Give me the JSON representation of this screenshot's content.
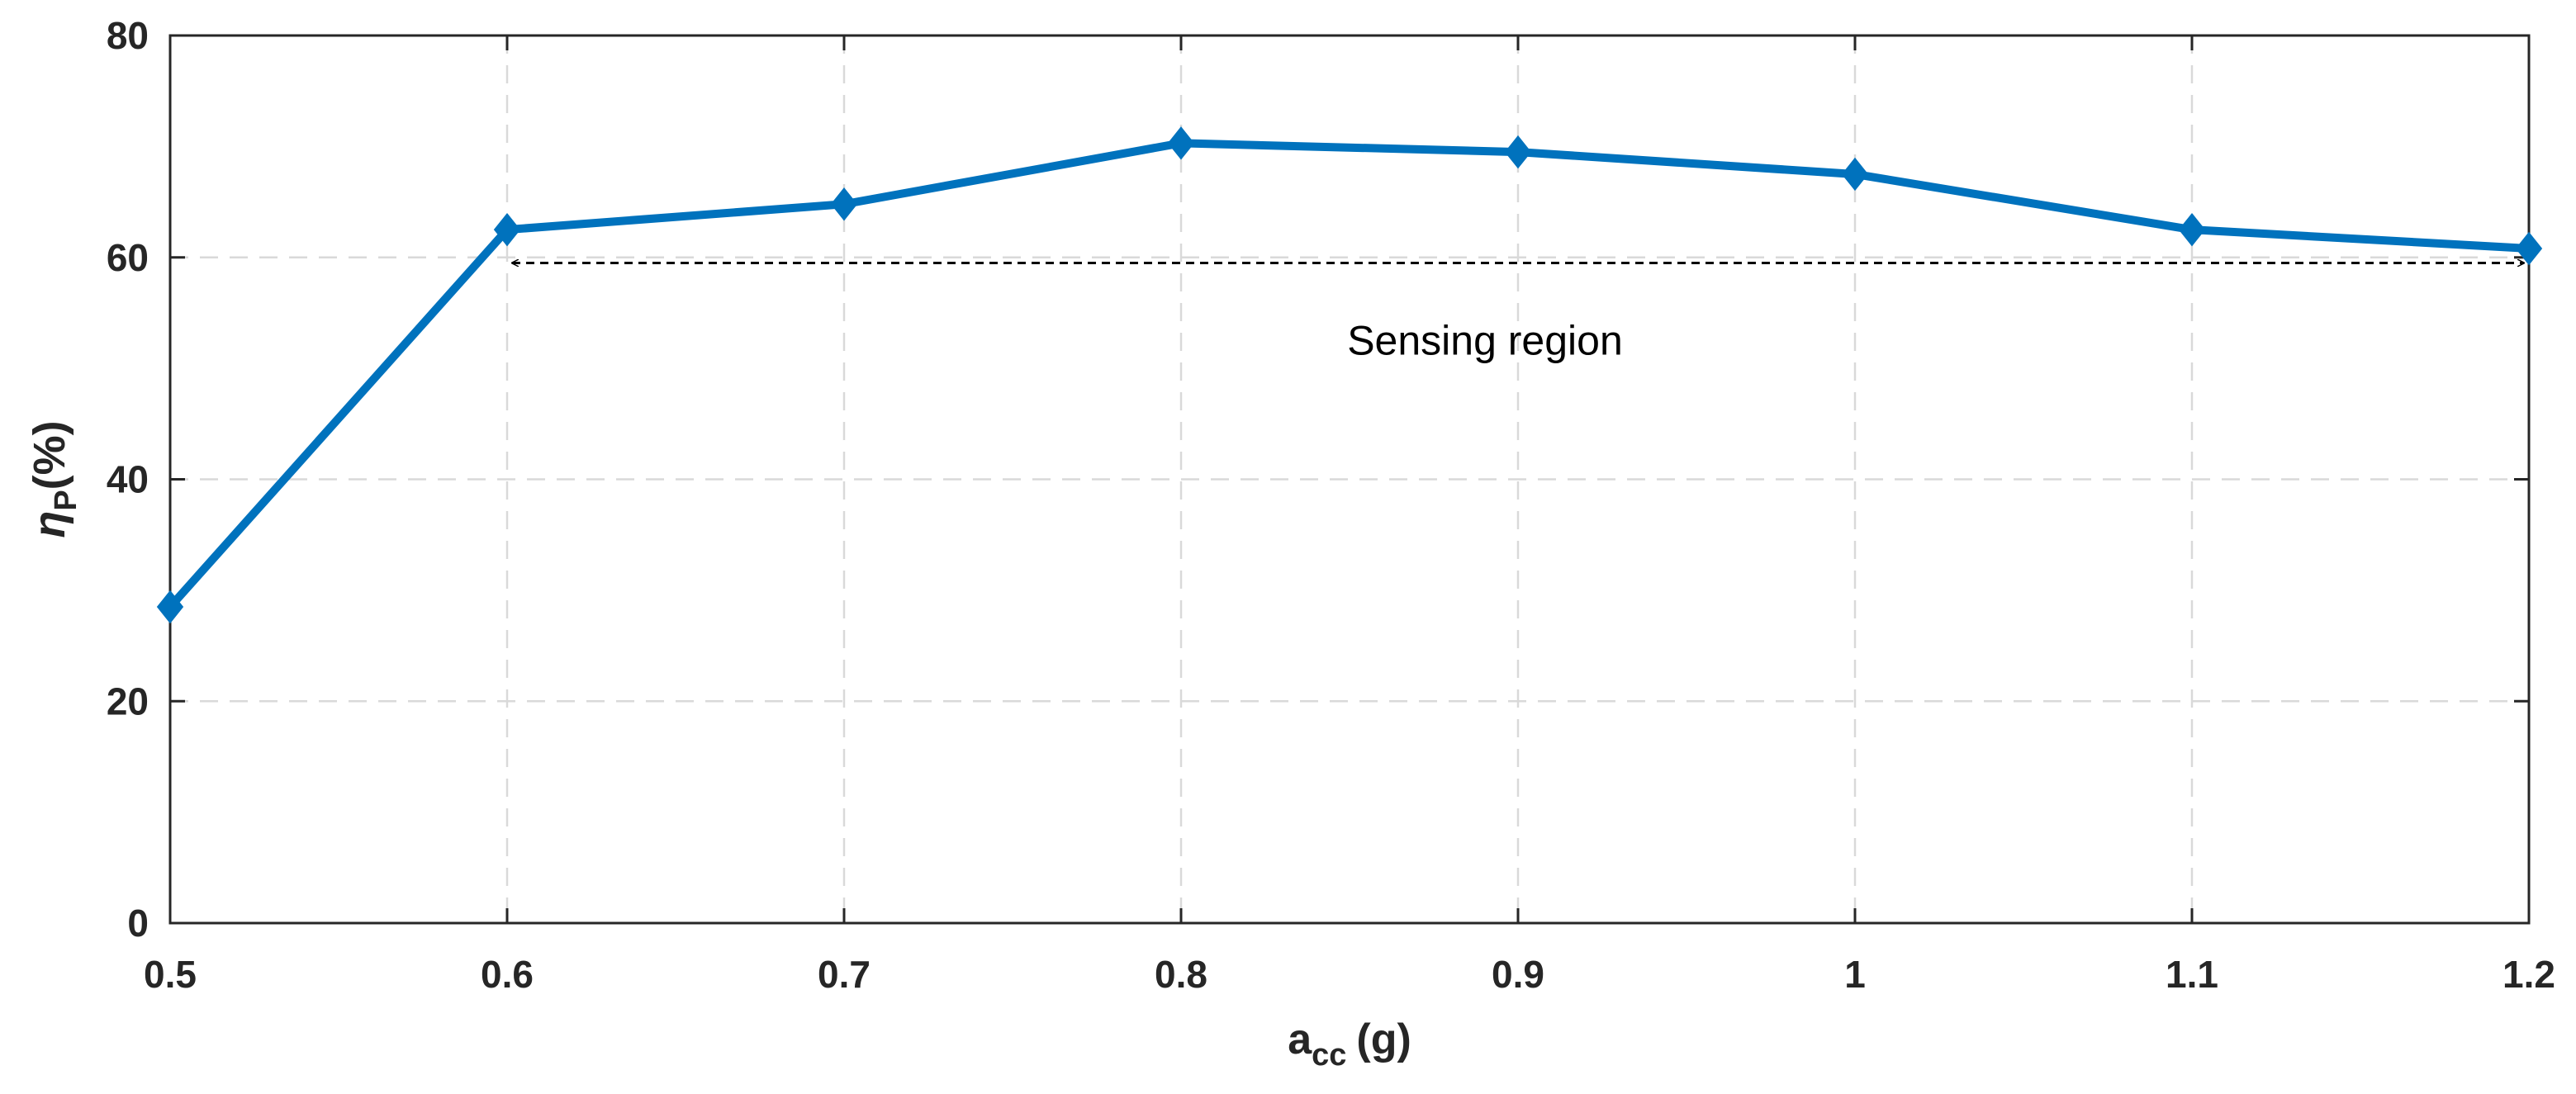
{
  "chart_data": {
    "type": "line",
    "title": "",
    "xlabel_main": "a",
    "xlabel_sub": "cc",
    "xlabel_unit": "(g)",
    "ylabel_main": "η",
    "ylabel_sub": "P",
    "ylabel_unit": "(%)",
    "xlim": [
      0.5,
      1.2
    ],
    "ylim": [
      0,
      80
    ],
    "grid": true,
    "x_ticks": [
      0.5,
      0.6,
      0.7,
      0.8,
      0.9,
      1.0,
      1.1,
      1.2
    ],
    "x_tick_labels": [
      "0.5",
      "0.6",
      "0.7",
      "0.8",
      "0.9",
      "1",
      "1.1",
      "1.2"
    ],
    "y_ticks": [
      0,
      20,
      40,
      60,
      80
    ],
    "y_tick_labels": [
      "0",
      "20",
      "40",
      "60",
      "80"
    ],
    "series": [
      {
        "name": "efficiency",
        "color": "#0072BD",
        "marker": "diamond",
        "x": [
          0.5,
          0.6,
          0.7,
          0.8,
          0.9,
          1.0,
          1.1,
          1.2
        ],
        "values": [
          28.5,
          62.5,
          64.8,
          70.3,
          69.5,
          67.5,
          62.5,
          60.8
        ]
      }
    ],
    "annotation": {
      "text": "Sensing region",
      "x_start": 0.6,
      "x_end": 1.2,
      "y": 59.5,
      "text_x": 0.9,
      "text_y": 52.5,
      "style": "dashed double arrow"
    }
  }
}
